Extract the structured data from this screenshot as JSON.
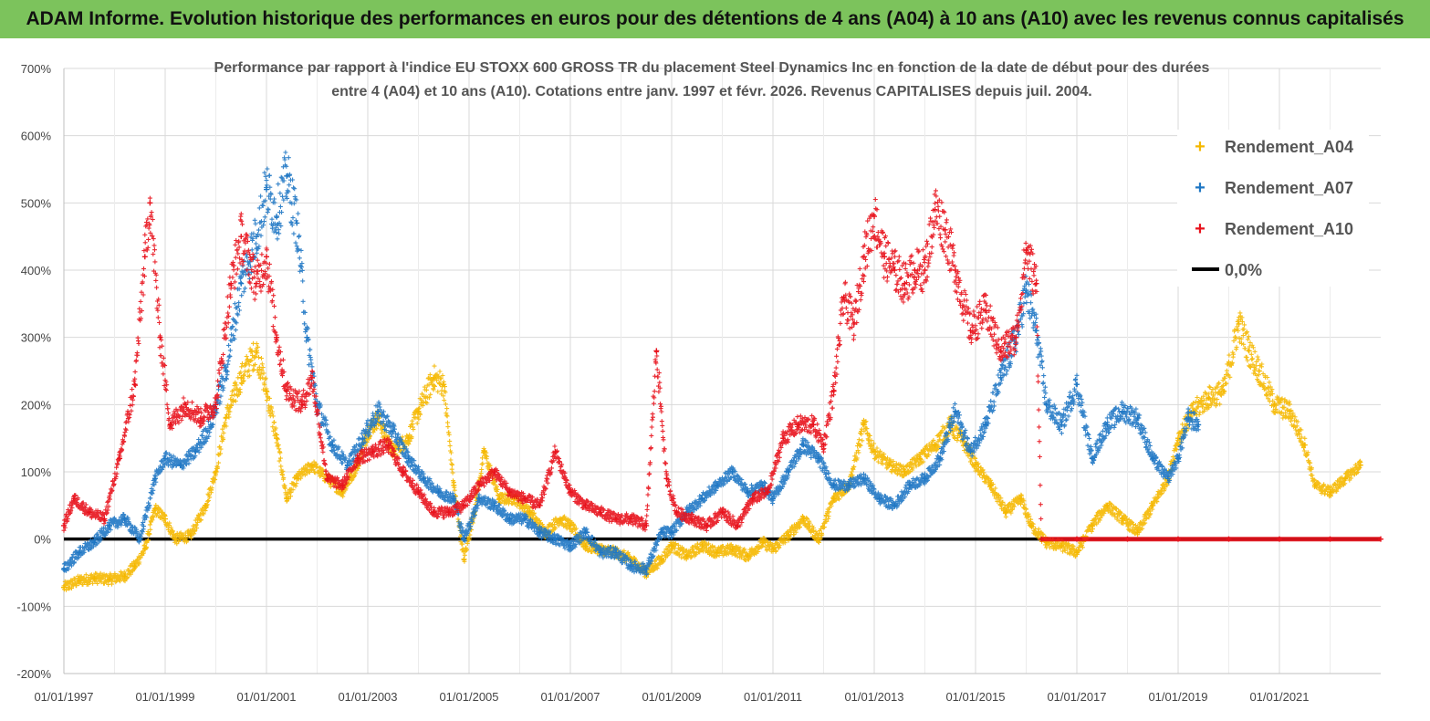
{
  "banner": {
    "title": "ADAM Informe. Evolution historique des performances en euros pour des détentions de 4 ans (A04) à 10 ans (A10) avec les revenus connus capitalisés"
  },
  "chart_data": {
    "type": "scatter",
    "title_lines": [
      "Performance par rapport à l'indice EU STOXX 600 GROSS TR  du placement Steel Dynamics Inc en fonction de la date de début pour des durées",
      "entre 4 (A04) et 10 ans (A10). Cotations entre janv. 1997 et févr. 2026. Revenus CAPITALISES depuis juil. 2004."
    ],
    "xlabel": "",
    "ylabel": "",
    "x_range": [
      "01/01/1997",
      "01/01/2023"
    ],
    "ylim": [
      -200,
      700
    ],
    "y_unit": "%",
    "grid": true,
    "legend_position": "top-right",
    "x_tick_labels": [
      "01/01/1997",
      "01/01/1999",
      "01/01/2001",
      "01/01/2003",
      "01/01/2005",
      "01/01/2007",
      "01/01/2009",
      "01/01/2011",
      "01/01/2013",
      "01/01/2015",
      "01/01/2017",
      "01/01/2019",
      "01/01/2021"
    ],
    "y_tick_labels": [
      "700%",
      "600%",
      "500%",
      "400%",
      "300%",
      "200%",
      "100%",
      "0%",
      "-100%",
      "-200%"
    ],
    "y_ticks": [
      700,
      600,
      500,
      400,
      300,
      200,
      100,
      0,
      -100,
      -200
    ],
    "series": [
      {
        "name": "Rendement_A04",
        "color": "#f5b800",
        "points": [
          [
            1997.0,
            -72
          ],
          [
            1997.3,
            -62
          ],
          [
            1997.6,
            -58
          ],
          [
            1997.9,
            -60
          ],
          [
            1998.2,
            -55
          ],
          [
            1998.4,
            -40
          ],
          [
            1998.6,
            -15
          ],
          [
            1998.8,
            45
          ],
          [
            1999.0,
            30
          ],
          [
            1999.2,
            0
          ],
          [
            1999.5,
            5
          ],
          [
            1999.8,
            50
          ],
          [
            2000.0,
            100
          ],
          [
            2000.2,
            180
          ],
          [
            2000.5,
            240
          ],
          [
            2000.8,
            280
          ],
          [
            2001.0,
            220
          ],
          [
            2001.2,
            150
          ],
          [
            2001.4,
            60
          ],
          [
            2001.6,
            90
          ],
          [
            2001.9,
            110
          ],
          [
            2002.2,
            90
          ],
          [
            2002.5,
            70
          ],
          [
            2002.8,
            110
          ],
          [
            2003.0,
            160
          ],
          [
            2003.2,
            180
          ],
          [
            2003.5,
            130
          ],
          [
            2003.8,
            150
          ],
          [
            2004.0,
            190
          ],
          [
            2004.3,
            240
          ],
          [
            2004.5,
            230
          ],
          [
            2004.7,
            80
          ],
          [
            2004.9,
            -30
          ],
          [
            2005.1,
            40
          ],
          [
            2005.3,
            130
          ],
          [
            2005.6,
            60
          ],
          [
            2005.9,
            60
          ],
          [
            2006.2,
            40
          ],
          [
            2006.5,
            10
          ],
          [
            2006.8,
            30
          ],
          [
            2007.0,
            20
          ],
          [
            2007.3,
            -10
          ],
          [
            2007.6,
            -15
          ],
          [
            2007.9,
            -20
          ],
          [
            2008.2,
            -30
          ],
          [
            2008.5,
            -50
          ],
          [
            2008.8,
            -30
          ],
          [
            2009.0,
            -10
          ],
          [
            2009.3,
            -25
          ],
          [
            2009.6,
            -10
          ],
          [
            2009.9,
            -20
          ],
          [
            2010.2,
            -15
          ],
          [
            2010.5,
            -25
          ],
          [
            2010.8,
            -5
          ],
          [
            2011.0,
            -15
          ],
          [
            2011.3,
            5
          ],
          [
            2011.6,
            30
          ],
          [
            2011.9,
            0
          ],
          [
            2012.2,
            60
          ],
          [
            2012.5,
            80
          ],
          [
            2012.8,
            170
          ],
          [
            2013.0,
            130
          ],
          [
            2013.3,
            110
          ],
          [
            2013.6,
            100
          ],
          [
            2013.9,
            120
          ],
          [
            2014.2,
            140
          ],
          [
            2014.5,
            170
          ],
          [
            2014.8,
            140
          ],
          [
            2015.0,
            110
          ],
          [
            2015.3,
            80
          ],
          [
            2015.6,
            40
          ],
          [
            2015.9,
            60
          ],
          [
            2016.1,
            20
          ],
          [
            2016.4,
            -5
          ],
          [
            2016.7,
            -10
          ],
          [
            2017.0,
            -20
          ],
          [
            2017.3,
            20
          ],
          [
            2017.6,
            50
          ],
          [
            2017.9,
            30
          ],
          [
            2018.2,
            10
          ],
          [
            2018.5,
            50
          ],
          [
            2018.8,
            90
          ],
          [
            2019.0,
            150
          ],
          [
            2019.3,
            190
          ],
          [
            2019.6,
            210
          ],
          [
            2019.9,
            220
          ],
          [
            2020.2,
            320
          ],
          [
            2020.4,
            280
          ],
          [
            2020.6,
            250
          ],
          [
            2020.9,
            200
          ],
          [
            2021.2,
            190
          ],
          [
            2021.5,
            140
          ],
          [
            2021.7,
            80
          ],
          [
            2022.0,
            70
          ],
          [
            2022.3,
            90
          ],
          [
            2022.6,
            110
          ]
        ]
      },
      {
        "name": "Rendement_A07",
        "color": "#1f77c4",
        "points": [
          [
            1997.0,
            -45
          ],
          [
            1997.3,
            -20
          ],
          [
            1997.6,
            -5
          ],
          [
            1997.9,
            20
          ],
          [
            1998.2,
            30
          ],
          [
            1998.5,
            0
          ],
          [
            1998.8,
            90
          ],
          [
            1999.0,
            120
          ],
          [
            1999.3,
            110
          ],
          [
            1999.6,
            130
          ],
          [
            1999.9,
            170
          ],
          [
            2000.2,
            250
          ],
          [
            2000.5,
            380
          ],
          [
            2000.8,
            450
          ],
          [
            2001.0,
            520
          ],
          [
            2001.2,
            480
          ],
          [
            2001.4,
            540
          ],
          [
            2001.6,
            470
          ],
          [
            2001.8,
            300
          ],
          [
            2002.0,
            200
          ],
          [
            2002.3,
            140
          ],
          [
            2002.6,
            110
          ],
          [
            2002.9,
            150
          ],
          [
            2003.2,
            190
          ],
          [
            2003.5,
            160
          ],
          [
            2003.8,
            120
          ],
          [
            2004.1,
            90
          ],
          [
            2004.4,
            70
          ],
          [
            2004.7,
            60
          ],
          [
            2004.9,
            0
          ],
          [
            2005.2,
            60
          ],
          [
            2005.5,
            50
          ],
          [
            2005.8,
            30
          ],
          [
            2006.1,
            30
          ],
          [
            2006.4,
            10
          ],
          [
            2006.7,
            0
          ],
          [
            2007.0,
            -10
          ],
          [
            2007.3,
            10
          ],
          [
            2007.6,
            -20
          ],
          [
            2007.9,
            -20
          ],
          [
            2008.2,
            -40
          ],
          [
            2008.5,
            -45
          ],
          [
            2008.8,
            10
          ],
          [
            2009.0,
            10
          ],
          [
            2009.3,
            40
          ],
          [
            2009.6,
            60
          ],
          [
            2009.9,
            80
          ],
          [
            2010.2,
            100
          ],
          [
            2010.5,
            70
          ],
          [
            2010.8,
            80
          ],
          [
            2011.0,
            60
          ],
          [
            2011.3,
            100
          ],
          [
            2011.6,
            140
          ],
          [
            2011.9,
            120
          ],
          [
            2012.2,
            80
          ],
          [
            2012.5,
            80
          ],
          [
            2012.8,
            90
          ],
          [
            2013.1,
            60
          ],
          [
            2013.4,
            50
          ],
          [
            2013.7,
            80
          ],
          [
            2014.0,
            90
          ],
          [
            2014.3,
            120
          ],
          [
            2014.6,
            190
          ],
          [
            2014.9,
            130
          ],
          [
            2015.2,
            170
          ],
          [
            2015.5,
            240
          ],
          [
            2015.8,
            300
          ],
          [
            2016.0,
            370
          ],
          [
            2016.2,
            310
          ],
          [
            2016.4,
            200
          ],
          [
            2016.7,
            170
          ],
          [
            2017.0,
            230
          ],
          [
            2017.3,
            120
          ],
          [
            2017.6,
            170
          ],
          [
            2017.9,
            190
          ],
          [
            2018.2,
            180
          ],
          [
            2018.5,
            120
          ],
          [
            2018.8,
            90
          ],
          [
            2019.0,
            120
          ],
          [
            2019.2,
            180
          ],
          [
            2019.4,
            170
          ]
        ]
      },
      {
        "name": "Rendement_A10",
        "color": "#e8121c",
        "points": [
          [
            1997.0,
            20
          ],
          [
            1997.2,
            60
          ],
          [
            1997.5,
            40
          ],
          [
            1997.8,
            30
          ],
          [
            1998.1,
            120
          ],
          [
            1998.4,
            230
          ],
          [
            1998.6,
            420
          ],
          [
            1998.7,
            500
          ],
          [
            1998.9,
            300
          ],
          [
            1999.1,
            170
          ],
          [
            1999.4,
            200
          ],
          [
            1999.7,
            180
          ],
          [
            2000.0,
            200
          ],
          [
            2000.3,
            380
          ],
          [
            2000.5,
            450
          ],
          [
            2000.8,
            380
          ],
          [
            2001.0,
            420
          ],
          [
            2001.2,
            300
          ],
          [
            2001.4,
            220
          ],
          [
            2001.7,
            200
          ],
          [
            2001.9,
            240
          ],
          [
            2002.2,
            90
          ],
          [
            2002.5,
            80
          ],
          [
            2002.8,
            120
          ],
          [
            2003.1,
            130
          ],
          [
            2003.4,
            140
          ],
          [
            2003.7,
            100
          ],
          [
            2004.0,
            70
          ],
          [
            2004.3,
            40
          ],
          [
            2004.6,
            40
          ],
          [
            2004.9,
            50
          ],
          [
            2005.2,
            80
          ],
          [
            2005.5,
            100
          ],
          [
            2005.8,
            70
          ],
          [
            2006.1,
            60
          ],
          [
            2006.4,
            50
          ],
          [
            2006.7,
            130
          ],
          [
            2007.0,
            70
          ],
          [
            2007.3,
            50
          ],
          [
            2007.6,
            40
          ],
          [
            2007.9,
            30
          ],
          [
            2008.2,
            30
          ],
          [
            2008.5,
            20
          ],
          [
            2008.7,
            280
          ],
          [
            2008.9,
            90
          ],
          [
            2009.1,
            40
          ],
          [
            2009.4,
            30
          ],
          [
            2009.7,
            20
          ],
          [
            2010.0,
            40
          ],
          [
            2010.3,
            20
          ],
          [
            2010.6,
            60
          ],
          [
            2010.9,
            70
          ],
          [
            2011.2,
            150
          ],
          [
            2011.5,
            170
          ],
          [
            2011.8,
            170
          ],
          [
            2012.0,
            140
          ],
          [
            2012.2,
            220
          ],
          [
            2012.4,
            360
          ],
          [
            2012.6,
            320
          ],
          [
            2012.8,
            420
          ],
          [
            2013.0,
            480
          ],
          [
            2013.2,
            420
          ],
          [
            2013.4,
            400
          ],
          [
            2013.6,
            380
          ],
          [
            2013.8,
            400
          ],
          [
            2014.0,
            400
          ],
          [
            2014.2,
            490
          ],
          [
            2014.4,
            460
          ],
          [
            2014.6,
            400
          ],
          [
            2014.9,
            310
          ],
          [
            2015.2,
            340
          ],
          [
            2015.5,
            280
          ],
          [
            2015.8,
            300
          ],
          [
            2016.0,
            430
          ],
          [
            2016.2,
            380
          ],
          [
            2016.3,
            0
          ],
          [
            2017.0,
            0
          ],
          [
            2018.0,
            0
          ],
          [
            2019.0,
            0
          ],
          [
            2020.0,
            0
          ],
          [
            2021.0,
            0
          ],
          [
            2022.0,
            0
          ],
          [
            2023.0,
            0
          ]
        ]
      },
      {
        "name": "0,0%",
        "color": "#000000",
        "type": "line",
        "points": [
          [
            1997.0,
            0
          ],
          [
            2023.0,
            0
          ]
        ]
      }
    ]
  }
}
